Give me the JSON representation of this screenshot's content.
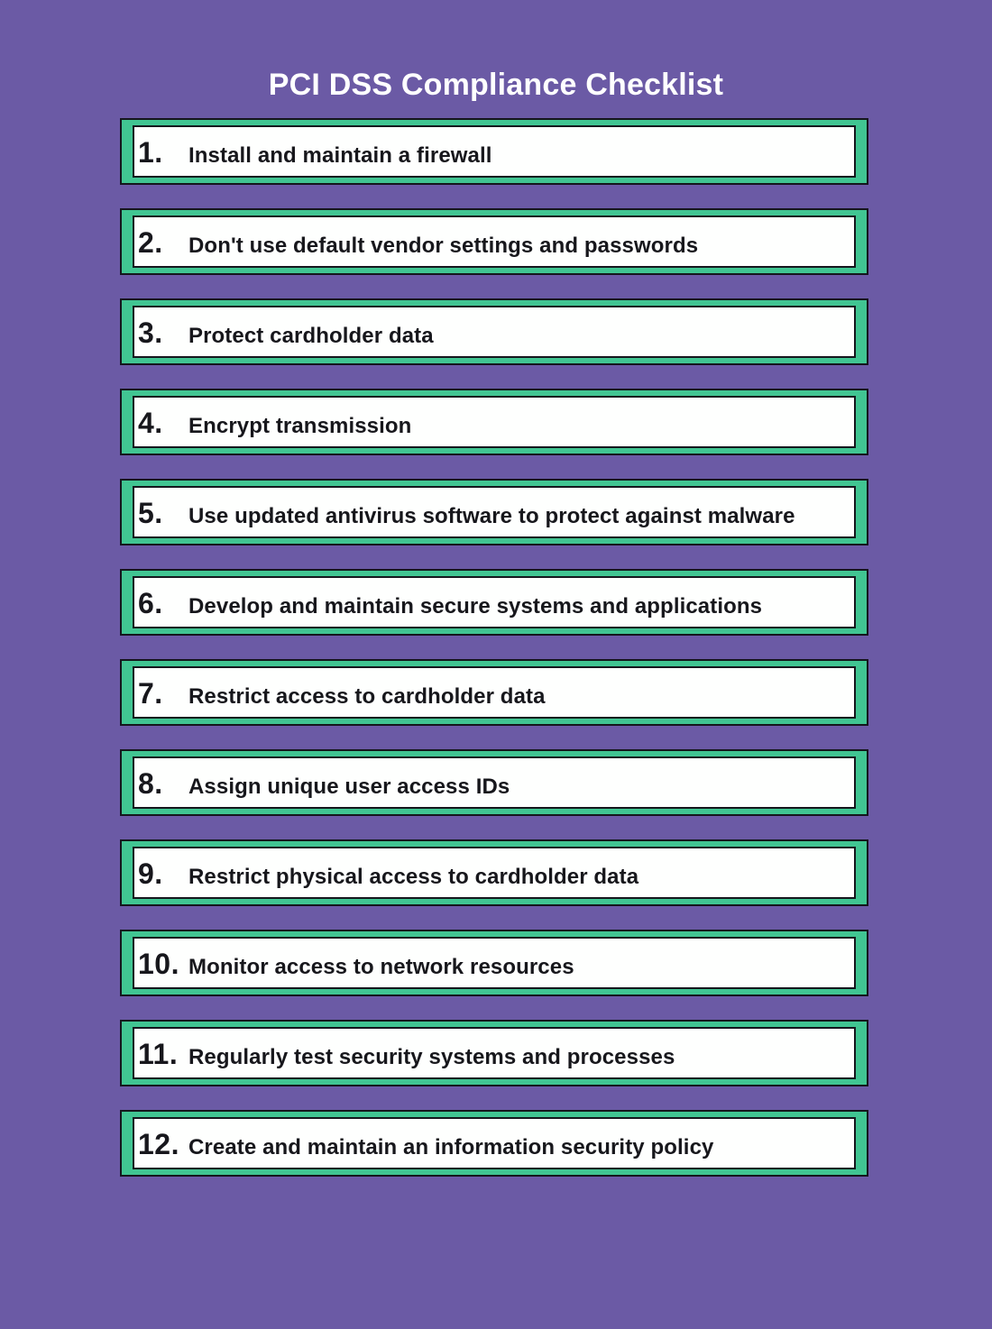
{
  "page": {
    "title": "PCI DSS Compliance Checklist"
  },
  "colors": {
    "background": "#6B5AA5",
    "accent": "#41C592",
    "border": "#15161D",
    "card": "#FEFFFE",
    "text": "#17171C",
    "title": "#FFFFFF"
  },
  "checklist": {
    "items": [
      {
        "number": "1.",
        "label": "Install and maintain a firewall"
      },
      {
        "number": "2.",
        "label": "Don't use default vendor settings and passwords"
      },
      {
        "number": "3.",
        "label": "Protect cardholder data"
      },
      {
        "number": "4.",
        "label": "Encrypt transmission"
      },
      {
        "number": "5.",
        "label": "Use updated antivirus software to protect against malware"
      },
      {
        "number": "6.",
        "label": "Develop and maintain secure systems and applications"
      },
      {
        "number": "7.",
        "label": "Restrict access to cardholder data"
      },
      {
        "number": "8.",
        "label": "Assign unique user access IDs"
      },
      {
        "number": "9.",
        "label": "Restrict physical access to cardholder data"
      },
      {
        "number": "10.",
        "label": "Monitor access to network resources"
      },
      {
        "number": "11.",
        "label": "Regularly test security systems and processes"
      },
      {
        "number": "12.",
        "label": "Create and maintain an information security policy"
      }
    ]
  }
}
